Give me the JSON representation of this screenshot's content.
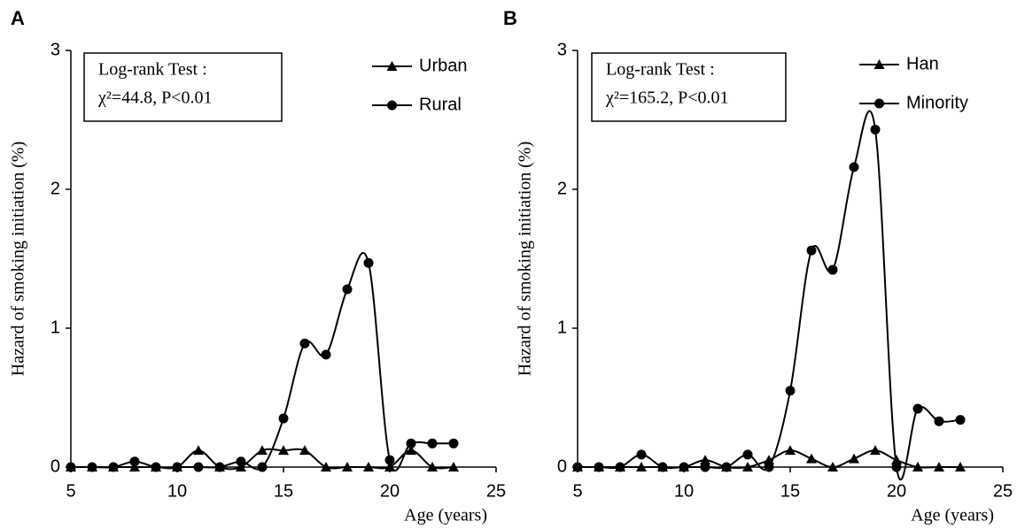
{
  "chart_data": [
    {
      "type": "line",
      "panel_label": "A",
      "xlabel": "Age (years)",
      "ylabel": "Hazard of smoking initiation (%)",
      "annotation": [
        "Log-rank Test :",
        "χ²=44.8,  P<0.01"
      ],
      "x": [
        5,
        6,
        7,
        8,
        9,
        10,
        11,
        12,
        13,
        14,
        15,
        16,
        17,
        18,
        19,
        20,
        21,
        22,
        23
      ],
      "series": [
        {
          "name": "Urban",
          "color": "#000000",
          "marker": "triangle",
          "values": [
            0,
            0,
            0,
            0,
            0,
            0,
            0.12,
            0,
            0,
            0.12,
            0.12,
            0.12,
            0,
            0,
            0,
            0,
            0.12,
            0,
            0
          ]
        },
        {
          "name": "Rural",
          "color": "#000000",
          "marker": "circle",
          "values": [
            0,
            0,
            0,
            0.04,
            0,
            0,
            0,
            0,
            0.04,
            0,
            0.35,
            0.89,
            0.81,
            1.28,
            1.47,
            0.05,
            0.17,
            0.17,
            0.17
          ]
        }
      ],
      "xlim": [
        5,
        25
      ],
      "xticks": [
        5,
        10,
        15,
        20,
        25
      ],
      "ylim": [
        0,
        3
      ],
      "yticks": [
        0,
        1,
        2,
        3
      ]
    },
    {
      "type": "line",
      "panel_label": "B",
      "xlabel": "Age (years)",
      "ylabel": "Hazard of smoking initiation (%)",
      "annotation": [
        "Log-rank Test :",
        "χ²=165.2,  P<0.01"
      ],
      "x": [
        5,
        6,
        7,
        8,
        9,
        10,
        11,
        12,
        13,
        14,
        15,
        16,
        17,
        18,
        19,
        20,
        21,
        22,
        23
      ],
      "series": [
        {
          "name": "Han",
          "color": "#000000",
          "marker": "triangle",
          "values": [
            0,
            0,
            0,
            0,
            0,
            0,
            0.05,
            0,
            0,
            0.05,
            0.12,
            0.06,
            0,
            0.06,
            0.12,
            0.05,
            0,
            0,
            0
          ]
        },
        {
          "name": "Minority",
          "color": "#000000",
          "marker": "circle",
          "values": [
            0,
            0,
            0,
            0.09,
            0,
            0,
            0,
            0,
            0.09,
            0,
            0.55,
            1.56,
            1.42,
            2.16,
            2.43,
            0,
            0.42,
            0.33,
            0.34
          ]
        }
      ],
      "xlim": [
        5,
        25
      ],
      "xticks": [
        5,
        10,
        15,
        20,
        25
      ],
      "ylim": [
        0,
        3
      ],
      "yticks": [
        0,
        1,
        2,
        3
      ]
    }
  ]
}
